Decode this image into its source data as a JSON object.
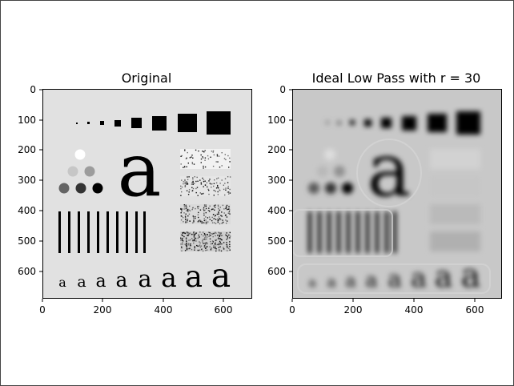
{
  "figure": {
    "panels": [
      {
        "title": "Original",
        "yticks": [
          "0",
          "100",
          "200",
          "300",
          "400",
          "500",
          "600"
        ],
        "xticks": [
          "0",
          "200",
          "400",
          "600"
        ]
      },
      {
        "title": "Ideal Low Pass with r = 30",
        "yticks": [
          "0",
          "100",
          "200",
          "300",
          "400",
          "500",
          "600"
        ],
        "xticks": [
          "0",
          "200",
          "400",
          "600"
        ]
      }
    ],
    "glyph": "a"
  }
}
